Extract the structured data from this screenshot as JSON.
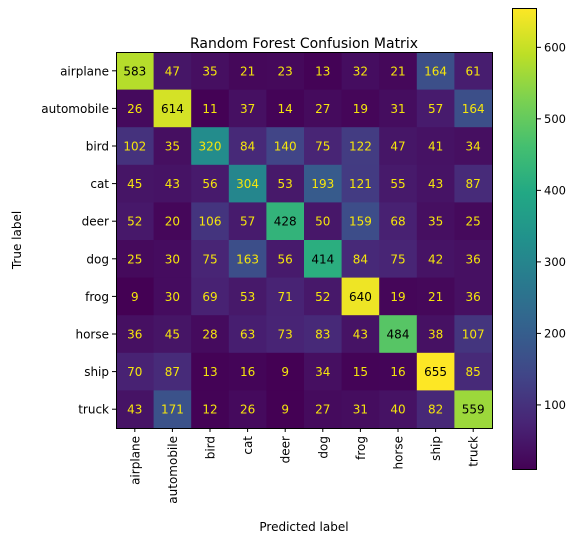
{
  "chart_data": {
    "type": "heatmap",
    "title": "Random Forest Confusion Matrix",
    "xlabel": "Predicted label",
    "ylabel": "True label",
    "x_categories": [
      "airplane",
      "automobile",
      "bird",
      "cat",
      "deer",
      "dog",
      "frog",
      "horse",
      "ship",
      "truck"
    ],
    "y_categories": [
      "airplane",
      "automobile",
      "bird",
      "cat",
      "deer",
      "dog",
      "frog",
      "horse",
      "ship",
      "truck"
    ],
    "values": [
      [
        583,
        47,
        35,
        21,
        23,
        13,
        32,
        21,
        164,
        61
      ],
      [
        26,
        614,
        11,
        37,
        14,
        27,
        19,
        31,
        57,
        164
      ],
      [
        102,
        35,
        320,
        84,
        140,
        75,
        122,
        47,
        41,
        34
      ],
      [
        45,
        43,
        56,
        304,
        53,
        193,
        121,
        55,
        43,
        87
      ],
      [
        52,
        20,
        106,
        57,
        428,
        50,
        159,
        68,
        35,
        25
      ],
      [
        25,
        30,
        75,
        163,
        56,
        414,
        84,
        75,
        42,
        36
      ],
      [
        9,
        30,
        69,
        53,
        71,
        52,
        640,
        19,
        21,
        36
      ],
      [
        36,
        45,
        28,
        63,
        73,
        83,
        43,
        484,
        38,
        107
      ],
      [
        70,
        87,
        13,
        16,
        9,
        34,
        15,
        16,
        655,
        85
      ],
      [
        43,
        171,
        12,
        26,
        9,
        27,
        31,
        40,
        82,
        559
      ]
    ],
    "colormap": "viridis",
    "colorbar": {
      "range": [
        9,
        655
      ],
      "ticks": [
        100,
        200,
        300,
        400,
        500,
        600
      ]
    },
    "label_colors": {
      "dark_text": "#000000",
      "light_text": "#f5e50c"
    }
  }
}
